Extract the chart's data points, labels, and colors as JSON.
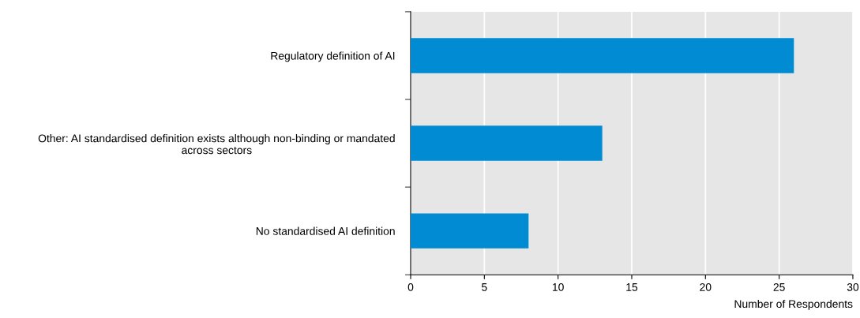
{
  "chart_data": {
    "type": "bar",
    "orientation": "horizontal",
    "categories": [
      "Regulatory definition of AI",
      "Other: AI standardised definition exists although non-binding or mandated\nacross sectors",
      "No standardised AI definition"
    ],
    "values": [
      26,
      13,
      8
    ],
    "color": "#008bd2",
    "xlabel": "Number of Respondents",
    "xlim": [
      0,
      30
    ],
    "xticks": [
      0,
      5,
      10,
      15,
      20,
      25,
      30
    ],
    "grid": "x"
  }
}
